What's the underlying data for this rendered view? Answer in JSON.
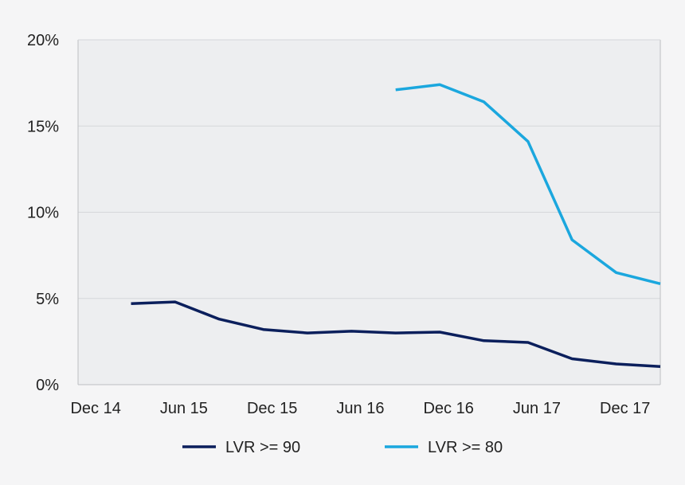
{
  "chart_data": {
    "type": "line",
    "title": "",
    "xlabel": "",
    "ylabel": "",
    "x_tick_labels": [
      "Dec 14",
      "Jun 15",
      "Dec 15",
      "Jun 16",
      "Dec 16",
      "Jun 17",
      "Dec 17"
    ],
    "y_tick_labels": [
      "0%",
      "5%",
      "10%",
      "15%",
      "20%"
    ],
    "ylim": [
      0,
      20
    ],
    "y_unit": "%",
    "grid": true,
    "legend_position": "bottom",
    "x": [
      "Mar 15",
      "Jun 15",
      "Sep 15",
      "Dec 15",
      "Mar 16",
      "Jun 16",
      "Sep 16",
      "Dec 16",
      "Mar 17",
      "Jun 17",
      "Sep 17",
      "Dec 17",
      "Mar 18"
    ],
    "series": [
      {
        "name": "LVR >= 90",
        "color": "#0b1f5c",
        "values": [
          4.7,
          4.8,
          3.8,
          3.2,
          3.0,
          3.1,
          3.0,
          3.05,
          2.55,
          2.45,
          1.5,
          1.2,
          1.05
        ]
      },
      {
        "name": "LVR >= 80",
        "color": "#1ba7de",
        "values": [
          null,
          null,
          null,
          null,
          null,
          null,
          17.1,
          17.4,
          16.4,
          14.1,
          8.4,
          6.5,
          5.85
        ]
      }
    ]
  },
  "colors": {
    "plot_background": "#edeef0",
    "gridline": "#d5d7da",
    "axis": "#bdbfc2"
  }
}
